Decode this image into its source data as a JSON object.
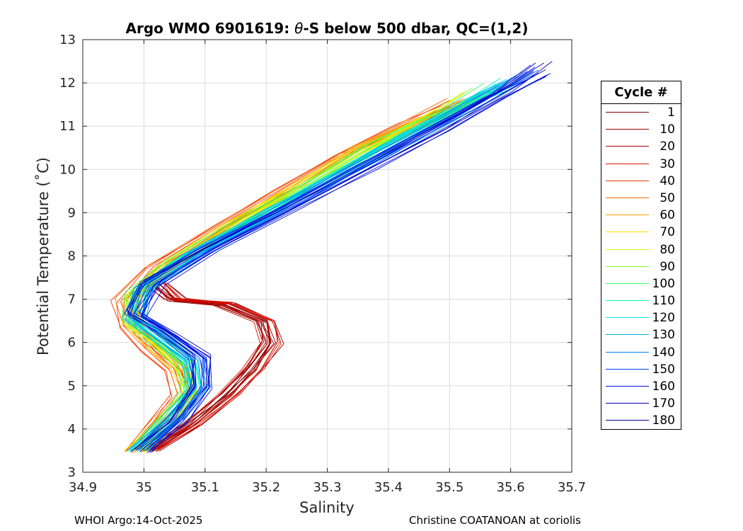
{
  "chart_data": {
    "type": "line",
    "title_prefix": "Argo WMO 6901619: ",
    "title_theta": "θ",
    "title_suffix": "-S below 500 dbar,  QC=(1,2)",
    "xlabel": "Salinity",
    "ylabel": "Potential Temperature (˚C)",
    "xlim": [
      34.9,
      35.7
    ],
    "ylim": [
      3,
      13
    ],
    "xticks": [
      34.9,
      35.0,
      35.1,
      35.2,
      35.3,
      35.4,
      35.5,
      35.6,
      35.7
    ],
    "xtick_labels": [
      "34.9",
      "35",
      "35.1",
      "35.2",
      "35.3",
      "35.4",
      "35.5",
      "35.6",
      "35.7"
    ],
    "yticks": [
      3,
      4,
      5,
      6,
      7,
      8,
      9,
      10,
      11,
      12,
      13
    ],
    "ytick_labels": [
      "3",
      "4",
      "5",
      "6",
      "7",
      "8",
      "9",
      "10",
      "11",
      "12",
      "13"
    ],
    "grid": true,
    "legend_title": "Cycle #",
    "legend_placement": "right-outside",
    "legend": [
      {
        "label": "1",
        "color": "#800000"
      },
      {
        "label": "10",
        "color": "#990000"
      },
      {
        "label": "20",
        "color": "#b30000"
      },
      {
        "label": "30",
        "color": "#d91000"
      },
      {
        "label": "40",
        "color": "#f03a00"
      },
      {
        "label": "50",
        "color": "#ff6600"
      },
      {
        "label": "60",
        "color": "#ff9900"
      },
      {
        "label": "70",
        "color": "#ffdd00"
      },
      {
        "label": "80",
        "color": "#ccff00"
      },
      {
        "label": "90",
        "color": "#88ff22"
      },
      {
        "label": "100",
        "color": "#33ff66"
      },
      {
        "label": "110",
        "color": "#00ffaa"
      },
      {
        "label": "120",
        "color": "#00e6e6"
      },
      {
        "label": "130",
        "color": "#00b3e6"
      },
      {
        "label": "140",
        "color": "#0080ff"
      },
      {
        "label": "150",
        "color": "#0040ff"
      },
      {
        "label": "160",
        "color": "#0010dd"
      },
      {
        "label": "170",
        "color": "#0000bb"
      },
      {
        "label": "180",
        "color": "#000090"
      }
    ],
    "series_template": {
      "description_units": "salinity (PSU), potential temperature (degC)",
      "early_cycles_1_40": [
        [
          35.01,
          3.5
        ],
        [
          35.08,
          4.1
        ],
        [
          35.14,
          4.8
        ],
        [
          35.18,
          5.4
        ],
        [
          35.21,
          6.0
        ],
        [
          35.2,
          6.5
        ],
        [
          35.13,
          6.9
        ],
        [
          35.05,
          7.0
        ],
        [
          35.02,
          7.4
        ]
      ],
      "mid_cycles_40_100": [
        [
          34.98,
          3.5
        ],
        [
          35.03,
          4.3
        ],
        [
          35.07,
          4.9
        ],
        [
          35.04,
          5.5
        ],
        [
          35.0,
          6.0
        ],
        [
          34.96,
          6.6
        ],
        [
          34.97,
          7.3
        ],
        [
          35.08,
          8.3
        ],
        [
          35.2,
          9.3
        ],
        [
          35.3,
          10.2
        ],
        [
          35.42,
          11.0
        ],
        [
          35.5,
          11.5
        ]
      ],
      "late_cycles_100_180": [
        [
          35.0,
          3.5
        ],
        [
          35.06,
          4.2
        ],
        [
          35.1,
          5.0
        ],
        [
          35.1,
          5.7
        ],
        [
          35.05,
          6.2
        ],
        [
          34.99,
          6.7
        ],
        [
          35.02,
          7.4
        ],
        [
          35.12,
          8.2
        ],
        [
          35.26,
          9.2
        ],
        [
          35.38,
          10.1
        ],
        [
          35.5,
          11.0
        ],
        [
          35.6,
          11.8
        ],
        [
          35.67,
          12.4
        ]
      ]
    }
  },
  "footer": {
    "left": "WHOI Argo:14-Oct-2025",
    "right": "Christine COATANOAN at coriolis"
  }
}
